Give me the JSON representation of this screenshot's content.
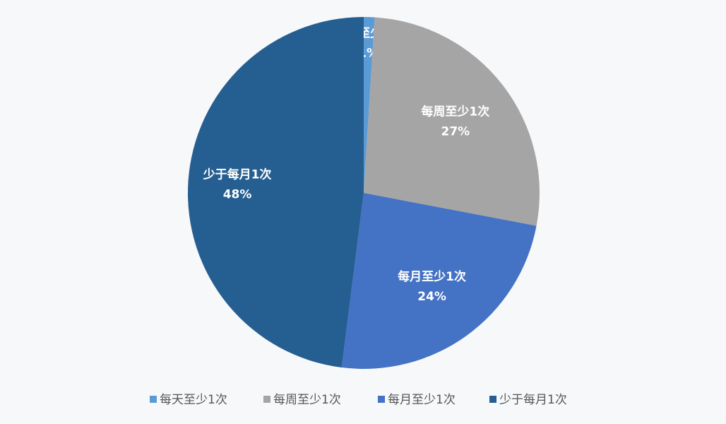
{
  "chart_data": {
    "type": "pie",
    "categories": [
      "每天至少1次",
      "每周至少1次",
      "每月至少1次",
      "少于每月1次"
    ],
    "values": [
      1,
      27,
      24,
      48
    ],
    "value_labels": [
      "1%",
      "27%",
      "24%",
      "48%"
    ],
    "colors": [
      "#5b9bd5",
      "#a5a5a5",
      "#4472c4",
      "#255e91"
    ],
    "legend": "bottom"
  }
}
